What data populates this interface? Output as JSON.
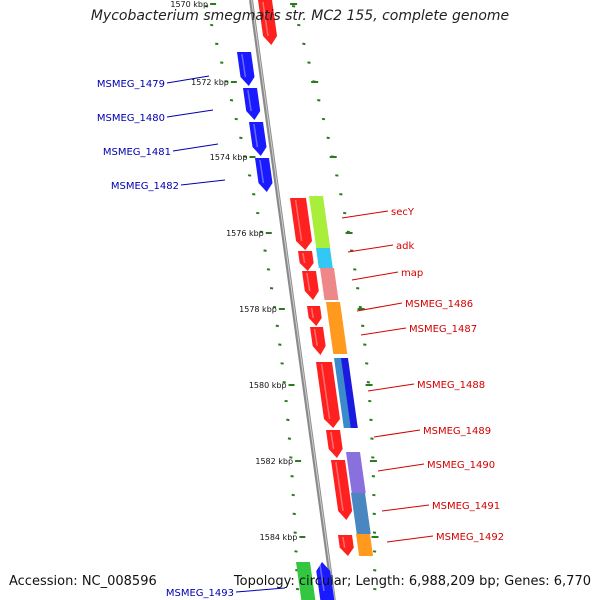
{
  "title": "Mycobacterium smegmatis str. MC2 155, complete genome",
  "footer": {
    "accession": "Accession: NC_008596",
    "summary": "Topology: circular; Length: 6,988,209 bp; Genes: 6,770"
  },
  "colors": {
    "backbone": "#8a8a8a",
    "ruler_dots": "#2a7a1e",
    "left_label": "#0000b0",
    "right_label": "#d40000",
    "forward_gene": "#1a1aff",
    "reverse_gene": "#ff2020"
  },
  "ruler_ticks": [
    "1570 kbp",
    "1572 kbp",
    "1574 kbp",
    "1576 kbp",
    "1578 kbp",
    "1580 kbp",
    "1582 kbp",
    "1584 kbp"
  ],
  "left_genes": [
    "MSMEG_1479",
    "MSMEG_1480",
    "MSMEG_1481",
    "MSMEG_1482",
    "MSMEG_1493"
  ],
  "right_genes": [
    "secY",
    "adk",
    "map",
    "MSMEG_1486",
    "MSMEG_1487",
    "MSMEG_1488",
    "MSMEG_1489",
    "MSMEG_1490",
    "MSMEG_1491",
    "MSMEG_1492"
  ],
  "cog_colors": [
    "#a8ee3a",
    "#33c8f4",
    "#ee8888",
    "#ff9a1e",
    "#ff9a1e",
    "#3a8acc",
    "#1a1ae0",
    "#8a70dd",
    "#4a86c0",
    "#ff9a1e",
    "#33c640"
  ]
}
